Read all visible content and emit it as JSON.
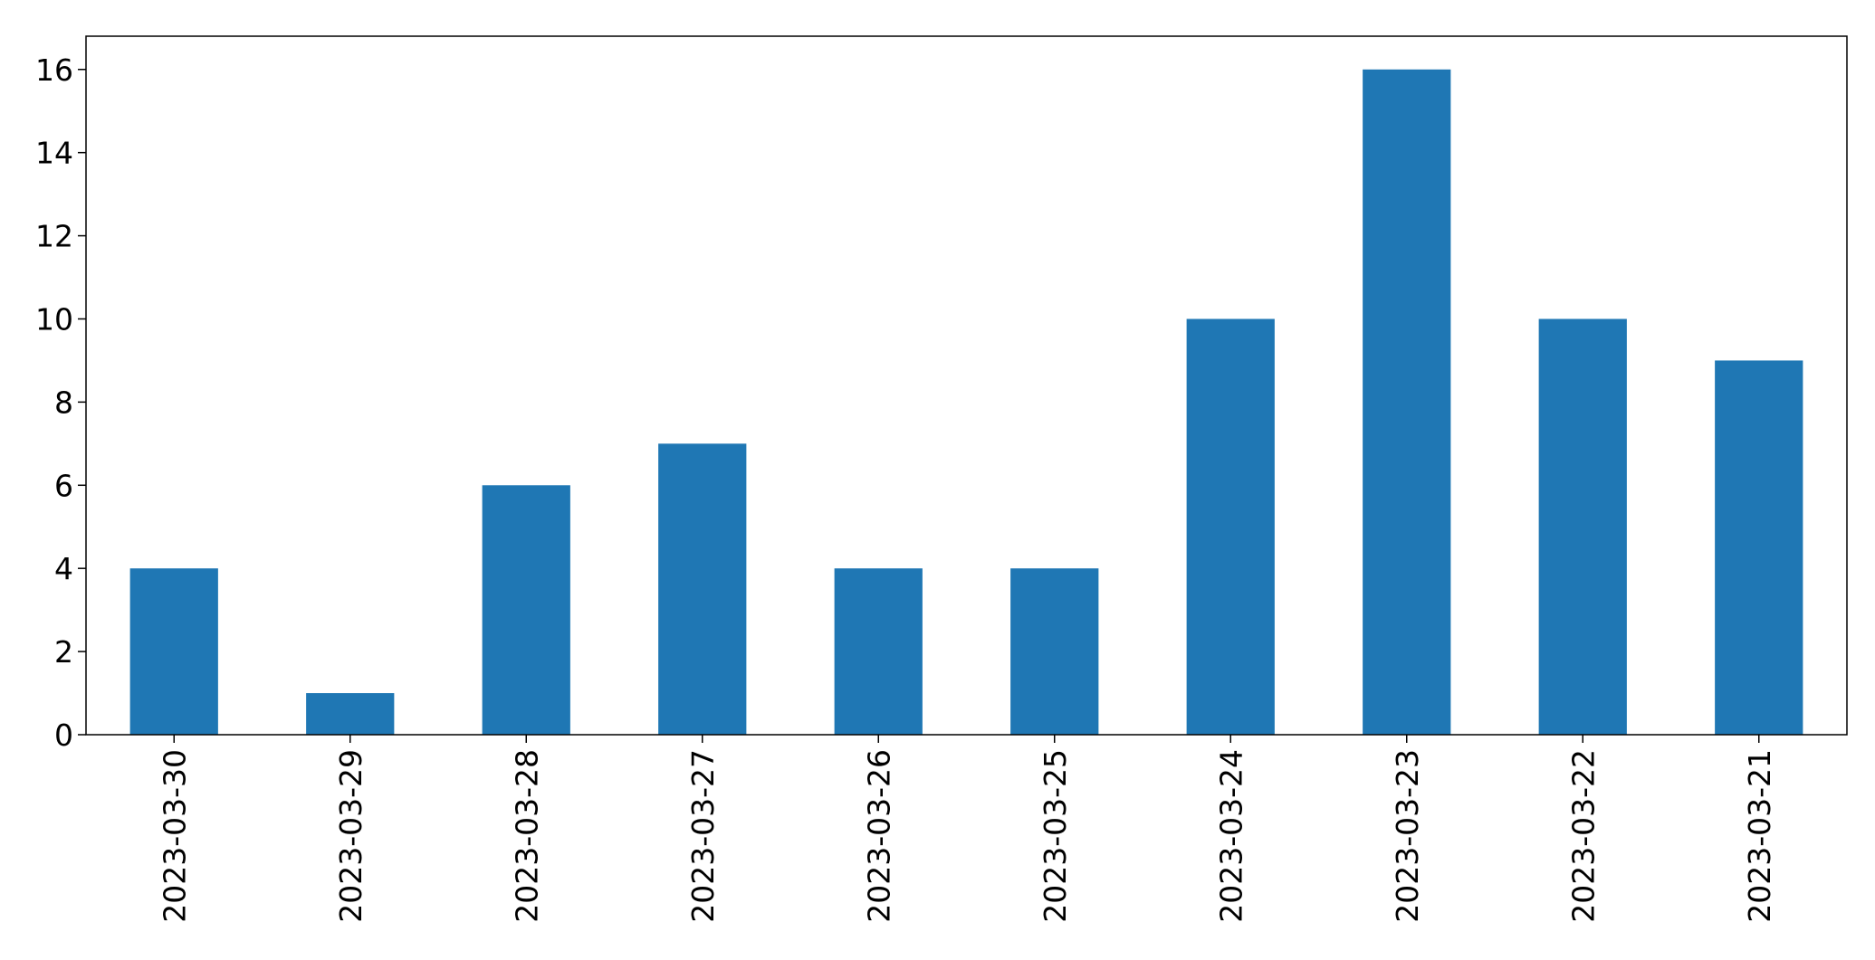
{
  "chart_data": {
    "type": "bar",
    "title": "",
    "xlabel": "",
    "ylabel": "",
    "categories": [
      "2023-03-30",
      "2023-03-29",
      "2023-03-28",
      "2023-03-27",
      "2023-03-26",
      "2023-03-25",
      "2023-03-24",
      "2023-03-23",
      "2023-03-22",
      "2023-03-21"
    ],
    "values": [
      4,
      1,
      6,
      7,
      4,
      4,
      10,
      16,
      10,
      9
    ],
    "ylim": [
      0,
      16.8
    ],
    "yticks": [
      0,
      2,
      4,
      6,
      8,
      10,
      12,
      14,
      16
    ],
    "grid": false,
    "legend": false,
    "bar_color": "#1f77b4",
    "x_tick_rotation": "vertical"
  }
}
